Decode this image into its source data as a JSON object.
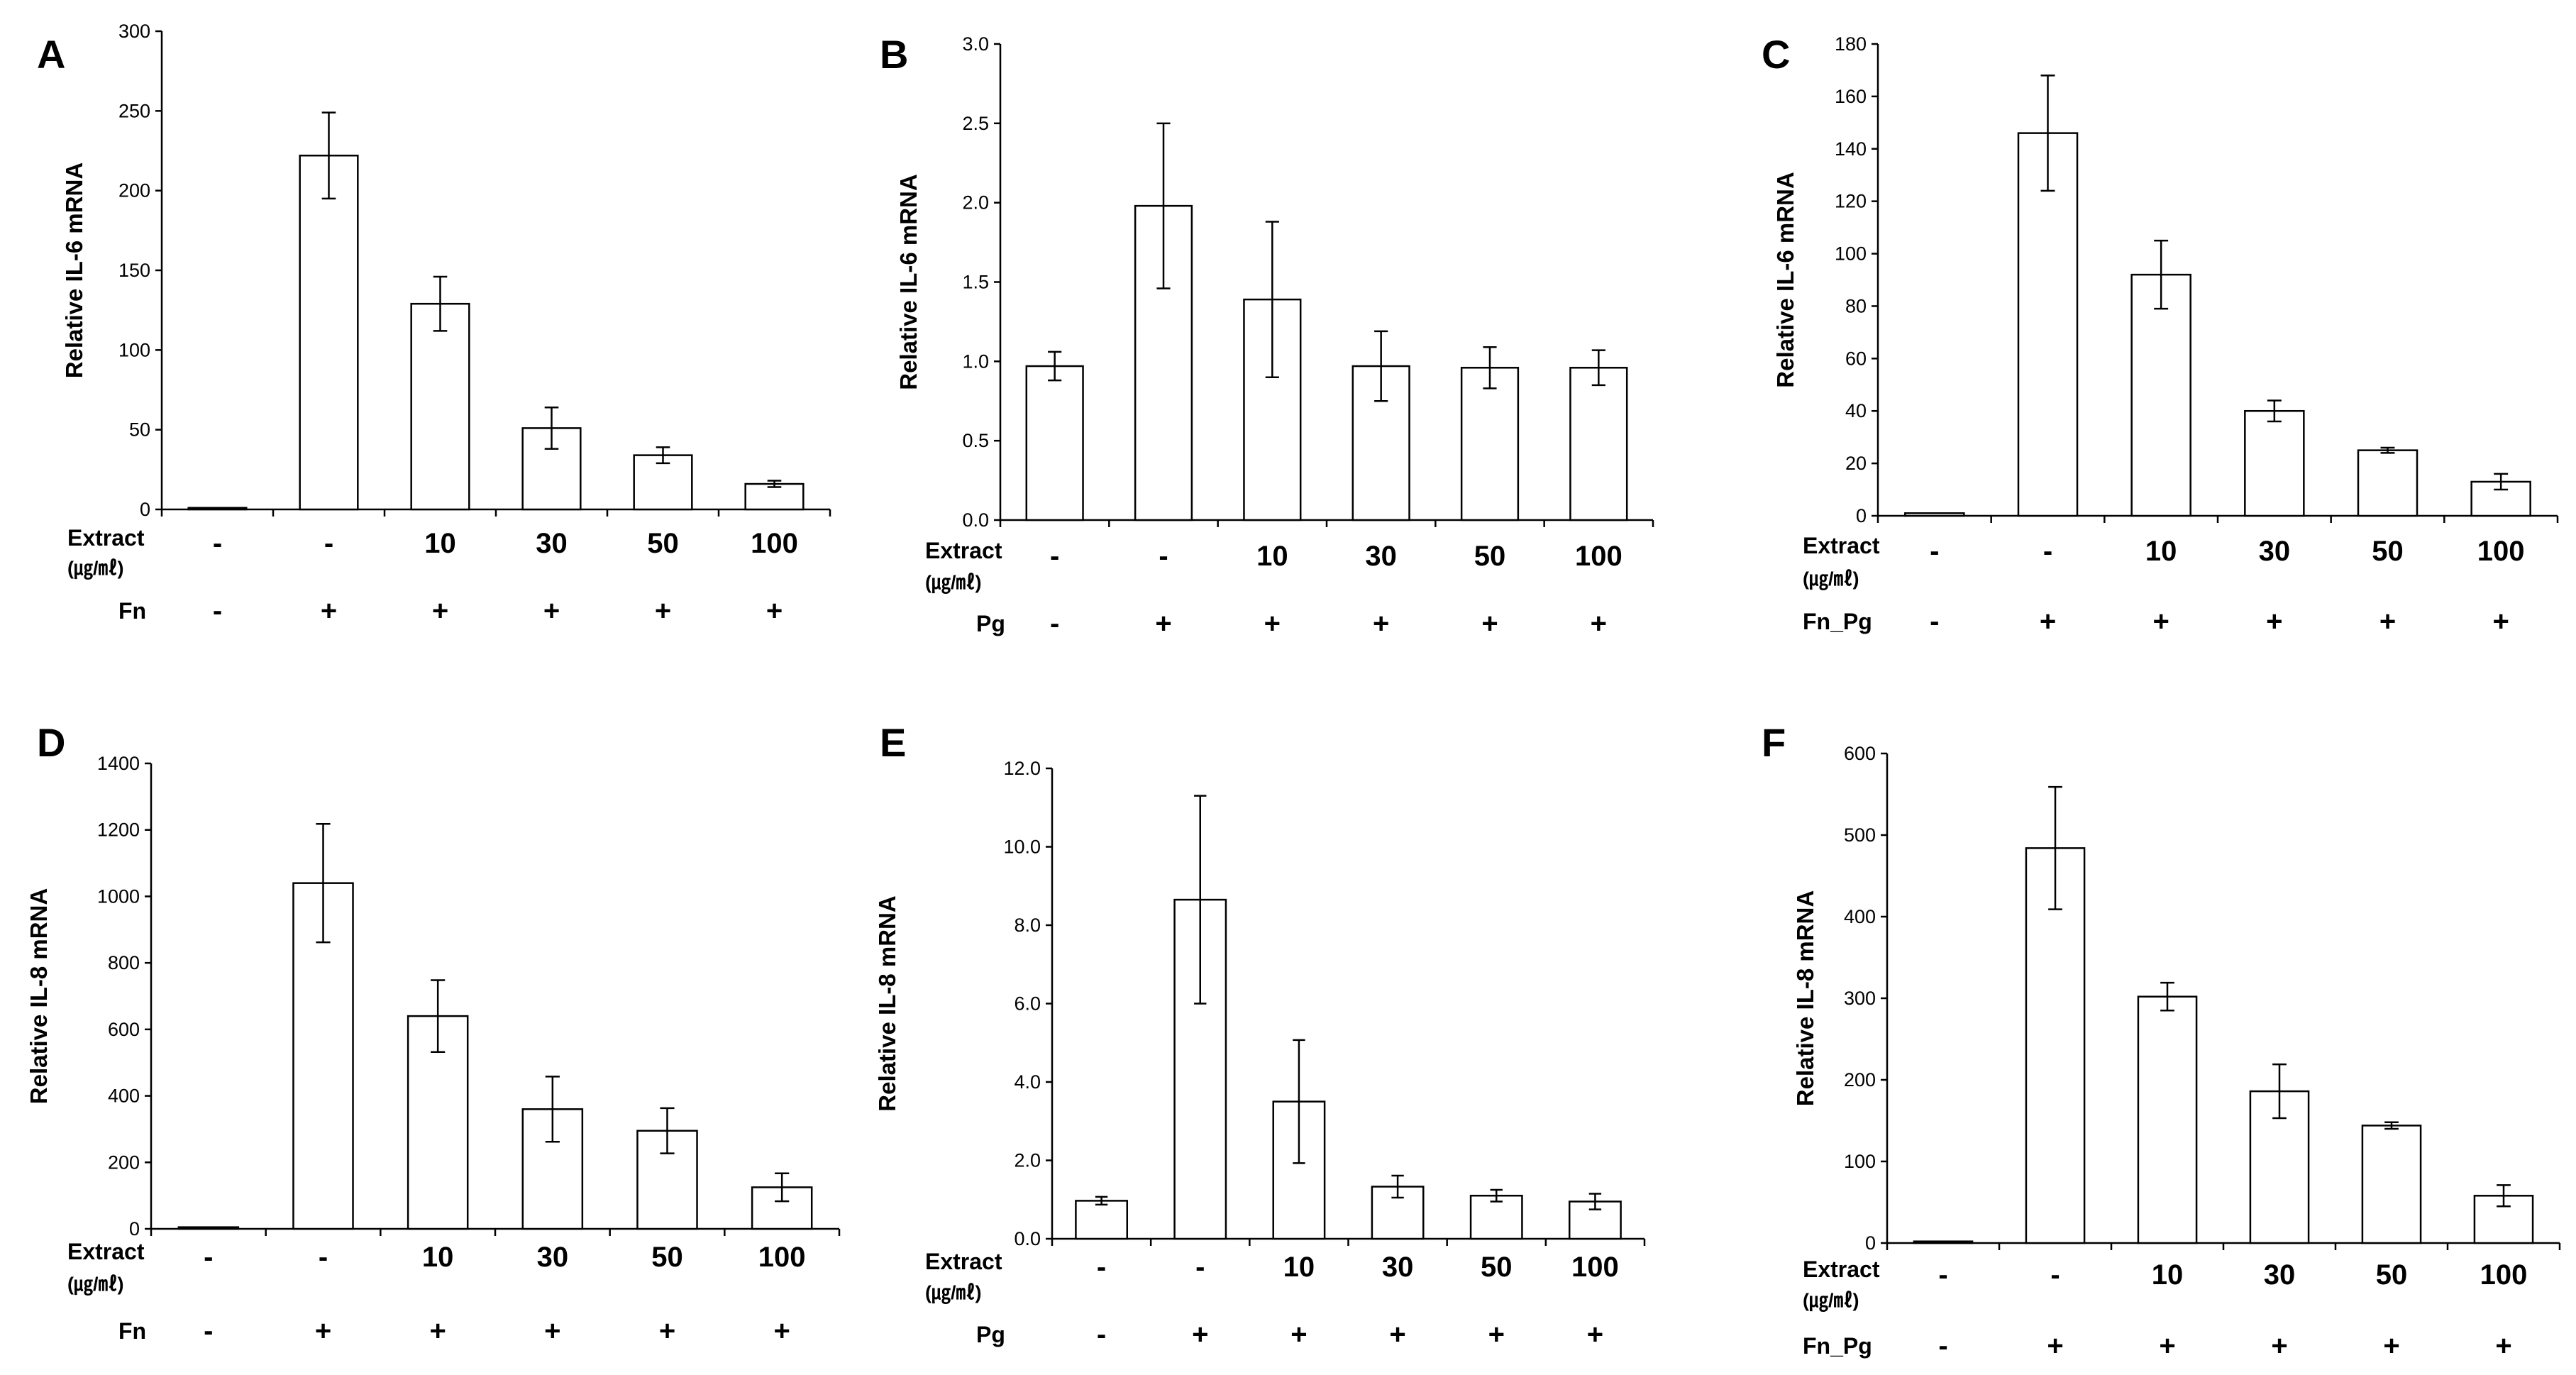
{
  "chart_data": [
    {
      "panel": "A",
      "type": "bar",
      "ylabel": "Relative IL-6 mRNA",
      "ylim": [
        0,
        300
      ],
      "yticks": [
        "0",
        "50",
        "100",
        "150",
        "200",
        "250",
        "300"
      ],
      "values": [
        1,
        222,
        129,
        51,
        34,
        16
      ],
      "errors": [
        0,
        27,
        17,
        13,
        5,
        2
      ],
      "extract_label": "Extract",
      "unit_label": "(㎍/㎖)",
      "extract": [
        "-",
        "-",
        "10",
        "30",
        "50",
        "100"
      ],
      "treatment_label": "Fn",
      "treatment": [
        "-",
        "+",
        "+",
        "+",
        "+",
        "+"
      ]
    },
    {
      "panel": "B",
      "type": "bar",
      "ylabel": "Relative IL-6 mRNA",
      "ylim": [
        0,
        3.0
      ],
      "yticks": [
        "0.0",
        "0.5",
        "1.0",
        "1.5",
        "2.0",
        "2.5",
        "3.0"
      ],
      "values": [
        0.97,
        1.98,
        1.39,
        0.97,
        0.96,
        0.96
      ],
      "errors": [
        0.09,
        0.52,
        0.49,
        0.22,
        0.13,
        0.11
      ],
      "extract_label": "Extract",
      "unit_label": "(㎍/㎖)",
      "extract": [
        "-",
        "-",
        "10",
        "30",
        "50",
        "100"
      ],
      "treatment_label": "Pg",
      "treatment": [
        "-",
        "+",
        "+",
        "+",
        "+",
        "+"
      ]
    },
    {
      "panel": "C",
      "type": "bar",
      "ylabel": "Relative IL-6 mRNA",
      "ylim": [
        0,
        180
      ],
      "yticks": [
        "0",
        "20",
        "40",
        "60",
        "80",
        "100",
        "120",
        "140",
        "160",
        "180"
      ],
      "values": [
        1,
        146,
        92,
        40,
        25,
        13
      ],
      "errors": [
        0,
        22,
        13,
        4,
        1,
        3
      ],
      "extract_label": "Extract",
      "unit_label": "(㎍/㎖)",
      "extract": [
        "-",
        "-",
        "10",
        "30",
        "50",
        "100"
      ],
      "treatment_label": "Fn_Pg",
      "treatment": [
        "-",
        "+",
        "+",
        "+",
        "+",
        "+"
      ]
    },
    {
      "panel": "D",
      "type": "bar",
      "ylabel": "Relative IL-8 mRNA",
      "ylim": [
        0,
        1400
      ],
      "yticks": [
        "0",
        "200",
        "400",
        "600",
        "800",
        "1000",
        "1200",
        "1400"
      ],
      "values": [
        5,
        1040,
        640,
        360,
        295,
        125
      ],
      "errors": [
        0,
        178,
        108,
        98,
        68,
        42
      ],
      "extract_label": "Extract",
      "unit_label": "(㎍/㎖)",
      "extract": [
        "-",
        "-",
        "10",
        "30",
        "50",
        "100"
      ],
      "treatment_label": "Fn",
      "treatment": [
        "-",
        "+",
        "+",
        "+",
        "+",
        "+"
      ]
    },
    {
      "panel": "E",
      "type": "bar",
      "ylabel": "Relative IL-8 mRNA",
      "ylim": [
        0,
        12.0
      ],
      "yticks": [
        "0.0",
        "2.0",
        "4.0",
        "6.0",
        "8.0",
        "10.0",
        "12.0"
      ],
      "values": [
        0.97,
        8.65,
        3.5,
        1.33,
        1.1,
        0.95
      ],
      "errors": [
        0.1,
        2.65,
        1.57,
        0.28,
        0.15,
        0.2
      ],
      "extract_label": "Extract",
      "unit_label": "(㎍/㎖)",
      "extract": [
        "-",
        "-",
        "10",
        "30",
        "50",
        "100"
      ],
      "treatment_label": "Pg",
      "treatment": [
        "-",
        "+",
        "+",
        "+",
        "+",
        "+"
      ]
    },
    {
      "panel": "F",
      "type": "bar",
      "ylabel": "Relative IL-8 mRNA",
      "ylim": [
        0,
        600
      ],
      "yticks": [
        "0",
        "100",
        "200",
        "300",
        "400",
        "500",
        "600"
      ],
      "values": [
        2,
        484,
        302,
        186,
        144,
        58
      ],
      "errors": [
        0,
        75,
        17,
        33,
        4,
        13
      ],
      "extract_label": "Extract",
      "unit_label": "(㎍/㎖)",
      "extract": [
        "-",
        "-",
        "10",
        "30",
        "50",
        "100"
      ],
      "treatment_label": "Fn_Pg",
      "treatment": [
        "-",
        "+",
        "+",
        "+",
        "+",
        "+"
      ]
    }
  ]
}
